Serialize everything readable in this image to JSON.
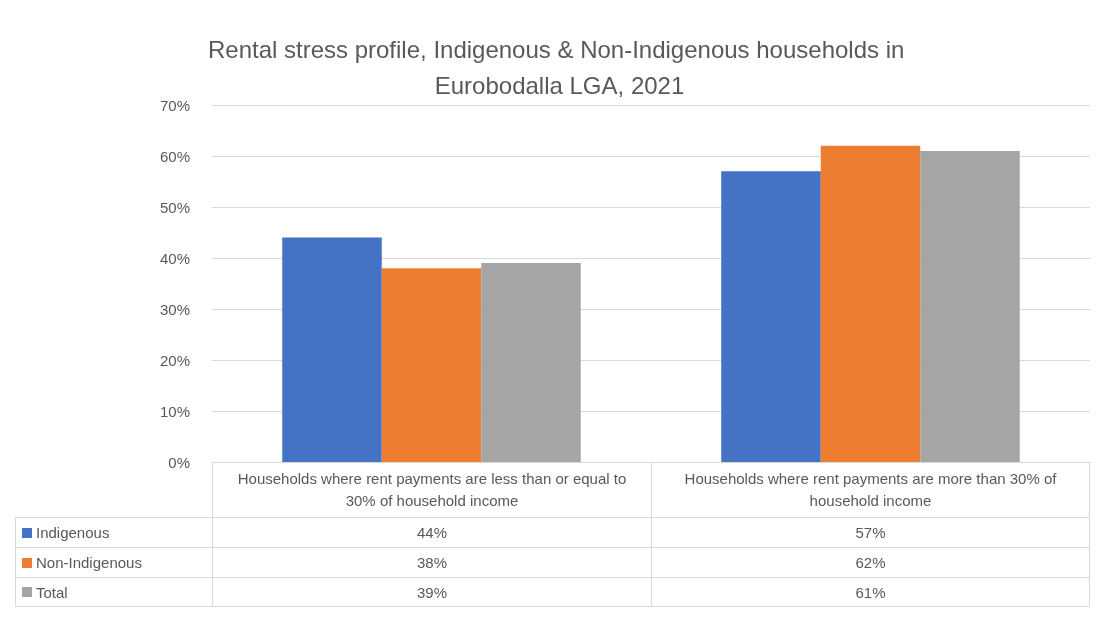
{
  "chart_data": {
    "type": "bar",
    "title": "Rental stress profile, Indigenous & Non-Indigenous households in Eurobodalla LGA, 2021",
    "categories": [
      "Households where rent payments are less than or equal to 30% of household income",
      "Households where rent payments are more than 30% of household income"
    ],
    "series": [
      {
        "name": "Indigenous",
        "color": "#4472c4",
        "values": [
          44,
          57
        ],
        "value_labels": [
          "44%",
          "57%"
        ]
      },
      {
        "name": "Non-Indigenous",
        "color": "#ed7d31",
        "values": [
          38,
          62
        ],
        "value_labels": [
          "38%",
          "62%"
        ]
      },
      {
        "name": "Total",
        "color": "#a5a5a5",
        "values": [
          39,
          61
        ],
        "value_labels": [
          "39%",
          "61%"
        ]
      }
    ],
    "ylim": [
      0,
      70
    ],
    "yticks": [
      {
        "value": 0,
        "label": "0%"
      },
      {
        "value": 10,
        "label": "10%"
      },
      {
        "value": 20,
        "label": "20%"
      },
      {
        "value": 30,
        "label": "30%"
      },
      {
        "value": 40,
        "label": "40%"
      },
      {
        "value": 50,
        "label": "50%"
      },
      {
        "value": 60,
        "label": "60%"
      },
      {
        "value": 70,
        "label": "70%"
      }
    ],
    "grid": "y",
    "legend": "bottom"
  }
}
